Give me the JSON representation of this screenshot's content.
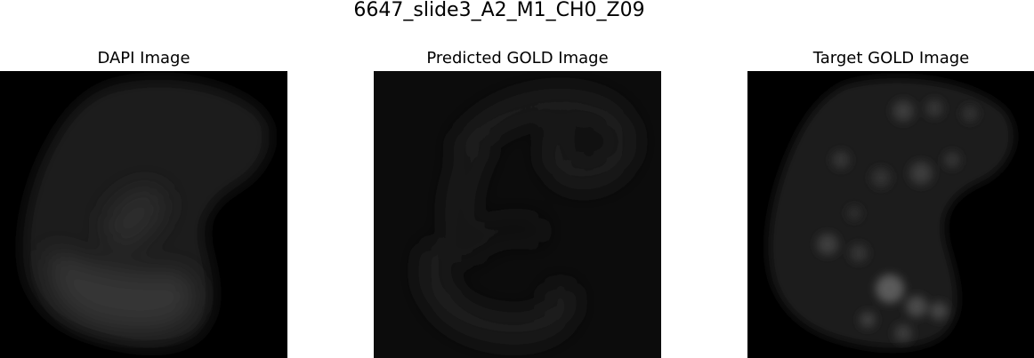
{
  "figure": {
    "title": "6647_slide3_A2_M1_CH0_Z09"
  },
  "panels": [
    {
      "title": "DAPI Image",
      "background": "#000000"
    },
    {
      "title": "Predicted GOLD Image",
      "background": "#0c0c0c"
    },
    {
      "title": "Target GOLD Image",
      "background": "#000000"
    }
  ]
}
